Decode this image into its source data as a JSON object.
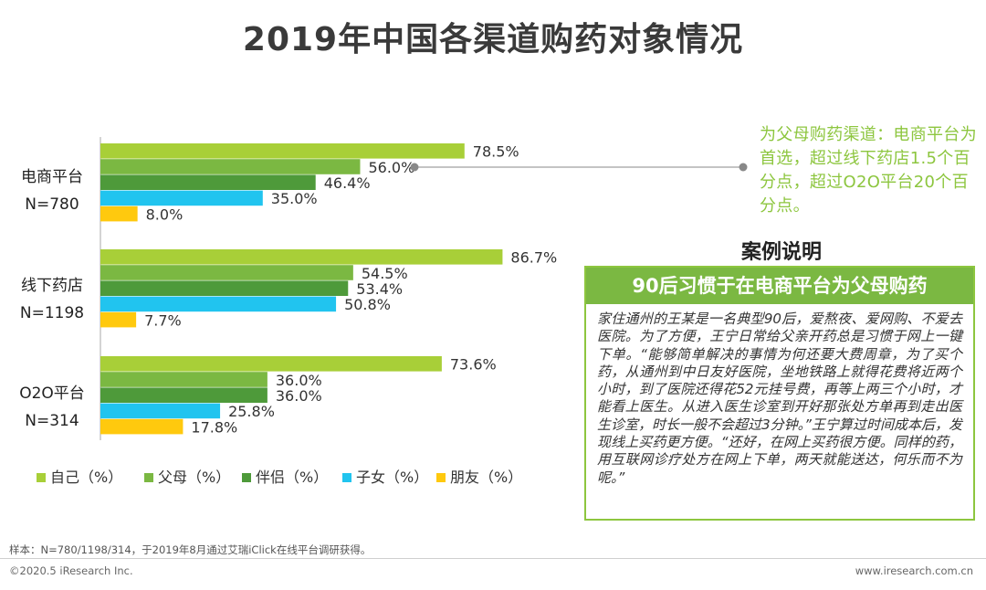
{
  "title": "2019年中国各渠道购药对象情况",
  "chart_data": {
    "type": "bar",
    "orientation": "horizontal",
    "categories": [
      {
        "name": "电商平台",
        "n": "N=780"
      },
      {
        "name": "线下药店",
        "n": "N=1198"
      },
      {
        "name": "O2O平台",
        "n": "N=314"
      }
    ],
    "series": [
      {
        "name": "自己（%）",
        "color": "#a8cf38",
        "values": [
          78.5,
          86.7,
          73.6
        ]
      },
      {
        "name": "父母（%）",
        "color": "#7bb842",
        "values": [
          56.0,
          54.5,
          36.0
        ]
      },
      {
        "name": "伴侣（%）",
        "color": "#4e9a3a",
        "values": [
          46.4,
          53.4,
          36.0
        ]
      },
      {
        "name": "子女（%）",
        "color": "#21c4ef",
        "values": [
          35.0,
          50.8,
          25.8
        ]
      },
      {
        "name": "朋友（%）",
        "color": "#ffc90e",
        "values": [
          8.0,
          7.7,
          17.8
        ]
      }
    ],
    "value_suffix": "%",
    "xlim": [
      0,
      100
    ],
    "legend_position": "bottom"
  },
  "annotation": "为父母购药渠道：电商平台为首选，超过线下药店1.5个百分点，超过O2O平台20个百分点。",
  "case_heading": "案例说明",
  "case_title": "90后习惯于在电商平台为父母购药",
  "case_body": "家住通州的王某是一名典型90后，爱熬夜、爱网购、不爱去医院。为了方便，王宁日常给父亲开药总是习惯于网上一键下单。“能够简单解决的事情为何还要大费周章，为了买个药，从通州到中日友好医院，坐地铁路上就得花费将近两个小时，到了医院还得花52元挂号费，再等上两三个小时，才能看上医生。从进入医生诊室到开好那张处方单再到走出医生诊室，时长一般不会超过3分钟。”王宁算过时间成本后，发现线上买药更方便。“还好，在网上买药很方便。同样的药，用互联网诊疗处方在网上下单，两天就能送达，何乐而不为呢。”",
  "source": "样本：N=780/1198/314，于2019年8月通过艾瑞iClick在线平台调研获得。",
  "copyright": "©2020.5 iResearch Inc.",
  "website": "www.iresearch.com.cn",
  "colors": {
    "accent": "#8dc63f",
    "case_header": "#7bb842"
  }
}
